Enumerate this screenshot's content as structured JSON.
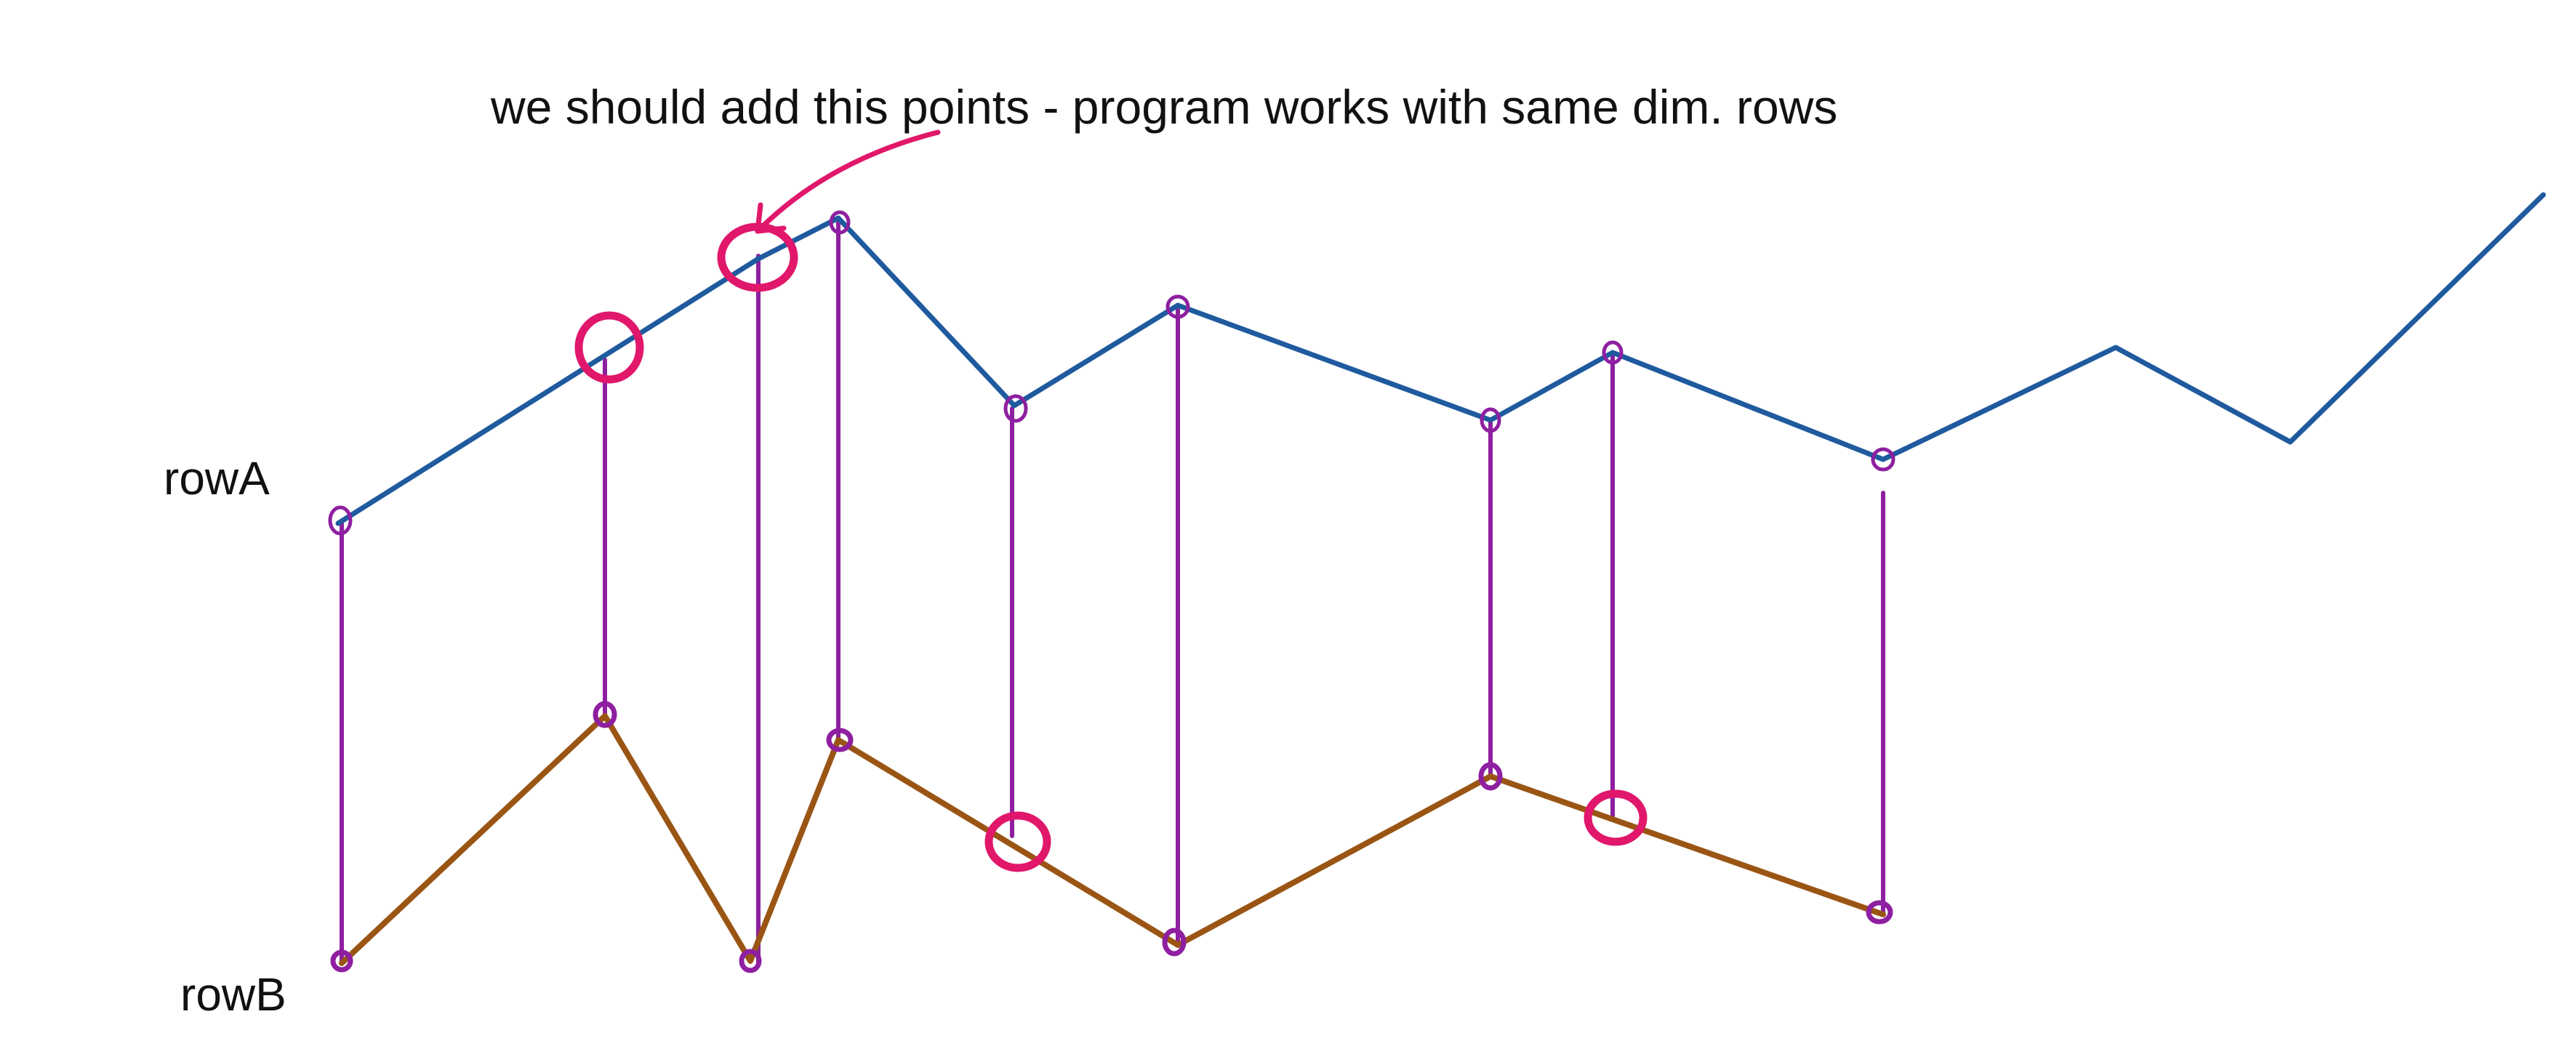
{
  "annotation": "we should add this points - program works with same dim. rows",
  "labels": {
    "rowA": "rowA",
    "rowB": "rowB"
  },
  "colors": {
    "rowA_line": "#1f5a9e",
    "rowB_line": "#9a5514",
    "connector": "#8e1fa0",
    "highlight": "#e0176b"
  }
}
